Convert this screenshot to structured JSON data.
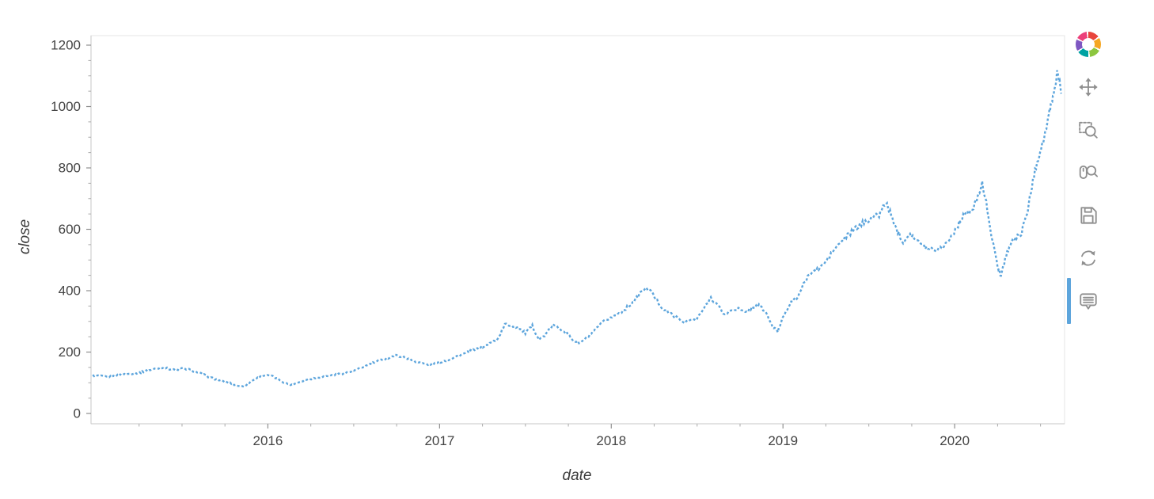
{
  "chart_data": {
    "type": "scatter",
    "title": "",
    "xlabel": "date",
    "ylabel": "close",
    "legend": "none",
    "grid": false,
    "x_ticks": [
      2016,
      2017,
      2018,
      2019,
      2020
    ],
    "y_ticks": [
      0,
      200,
      400,
      600,
      800,
      1000,
      1200
    ],
    "x_range": [
      2014.97,
      2020.64
    ],
    "ylim": [
      0,
      1200
    ],
    "line_color": "#5da5dc",
    "axis_color": "#c7c7c7",
    "outline_color": "#e5e5e5",
    "tick_label_color": "#444444",
    "series": [
      {
        "name": "close",
        "points": [
          [
            2014.98,
            124
          ],
          [
            2015.02,
            122
          ],
          [
            2015.06,
            119
          ],
          [
            2015.1,
            121
          ],
          [
            2015.14,
            126
          ],
          [
            2015.18,
            128
          ],
          [
            2015.22,
            131
          ],
          [
            2015.26,
            134
          ],
          [
            2015.3,
            140
          ],
          [
            2015.34,
            145
          ],
          [
            2015.38,
            149
          ],
          [
            2015.42,
            146
          ],
          [
            2015.46,
            141
          ],
          [
            2015.5,
            147
          ],
          [
            2015.54,
            143
          ],
          [
            2015.58,
            136
          ],
          [
            2015.62,
            128
          ],
          [
            2015.66,
            118
          ],
          [
            2015.7,
            111
          ],
          [
            2015.74,
            105
          ],
          [
            2015.78,
            99
          ],
          [
            2015.82,
            91
          ],
          [
            2015.86,
            88
          ],
          [
            2015.9,
            104
          ],
          [
            2015.94,
            116
          ],
          [
            2015.98,
            124
          ],
          [
            2016.02,
            122
          ],
          [
            2016.06,
            112
          ],
          [
            2016.1,
            99
          ],
          [
            2016.14,
            93
          ],
          [
            2016.18,
            102
          ],
          [
            2016.22,
            110
          ],
          [
            2016.26,
            114
          ],
          [
            2016.3,
            118
          ],
          [
            2016.34,
            121
          ],
          [
            2016.38,
            125
          ],
          [
            2016.42,
            129
          ],
          [
            2016.46,
            133
          ],
          [
            2016.5,
            139
          ],
          [
            2016.54,
            147
          ],
          [
            2016.58,
            157
          ],
          [
            2016.62,
            166
          ],
          [
            2016.66,
            174
          ],
          [
            2016.7,
            181
          ],
          [
            2016.74,
            189
          ],
          [
            2016.78,
            186
          ],
          [
            2016.82,
            178
          ],
          [
            2016.86,
            170
          ],
          [
            2016.9,
            163
          ],
          [
            2016.94,
            159
          ],
          [
            2016.98,
            164
          ],
          [
            2017.02,
            170
          ],
          [
            2017.06,
            177
          ],
          [
            2017.1,
            186
          ],
          [
            2017.14,
            194
          ],
          [
            2017.18,
            203
          ],
          [
            2017.22,
            211
          ],
          [
            2017.26,
            219
          ],
          [
            2017.3,
            230
          ],
          [
            2017.34,
            243
          ],
          [
            2017.38,
            290
          ],
          [
            2017.42,
            287
          ],
          [
            2017.46,
            278
          ],
          [
            2017.5,
            262
          ],
          [
            2017.54,
            285
          ],
          [
            2017.58,
            240
          ],
          [
            2017.62,
            258
          ],
          [
            2017.66,
            288
          ],
          [
            2017.7,
            278
          ],
          [
            2017.74,
            262
          ],
          [
            2017.78,
            237
          ],
          [
            2017.82,
            230
          ],
          [
            2017.86,
            248
          ],
          [
            2017.9,
            268
          ],
          [
            2017.94,
            292
          ],
          [
            2017.98,
            308
          ],
          [
            2018.02,
            318
          ],
          [
            2018.06,
            332
          ],
          [
            2018.1,
            349
          ],
          [
            2018.14,
            370
          ],
          [
            2018.18,
            400
          ],
          [
            2018.22,
            408
          ],
          [
            2018.26,
            372
          ],
          [
            2018.3,
            342
          ],
          [
            2018.34,
            327
          ],
          [
            2018.38,
            312
          ],
          [
            2018.42,
            298
          ],
          [
            2018.46,
            303
          ],
          [
            2018.5,
            310
          ],
          [
            2018.54,
            342
          ],
          [
            2018.58,
            378
          ],
          [
            2018.62,
            352
          ],
          [
            2018.66,
            322
          ],
          [
            2018.7,
            336
          ],
          [
            2018.74,
            342
          ],
          [
            2018.78,
            328
          ],
          [
            2018.82,
            345
          ],
          [
            2018.86,
            352
          ],
          [
            2018.9,
            330
          ],
          [
            2018.94,
            282
          ],
          [
            2018.97,
            267
          ],
          [
            2019.0,
            315
          ],
          [
            2019.04,
            358
          ],
          [
            2019.08,
            376
          ],
          [
            2019.12,
            420
          ],
          [
            2019.16,
            458
          ],
          [
            2019.2,
            468
          ],
          [
            2019.24,
            488
          ],
          [
            2019.28,
            520
          ],
          [
            2019.32,
            548
          ],
          [
            2019.36,
            570
          ],
          [
            2019.4,
            592
          ],
          [
            2019.44,
            610
          ],
          [
            2019.48,
            626
          ],
          [
            2019.52,
            638
          ],
          [
            2019.56,
            648
          ],
          [
            2019.6,
            688
          ],
          [
            2019.63,
            645
          ],
          [
            2019.66,
            602
          ],
          [
            2019.7,
            560
          ],
          [
            2019.74,
            588
          ],
          [
            2019.78,
            562
          ],
          [
            2019.82,
            545
          ],
          [
            2019.86,
            538
          ],
          [
            2019.9,
            534
          ],
          [
            2019.94,
            548
          ],
          [
            2019.98,
            576
          ],
          [
            2020.02,
            614
          ],
          [
            2020.05,
            648
          ],
          [
            2020.08,
            652
          ],
          [
            2020.11,
            668
          ],
          [
            2020.14,
            720
          ],
          [
            2020.16,
            748
          ],
          [
            2020.19,
            668
          ],
          [
            2020.22,
            560
          ],
          [
            2020.25,
            482
          ],
          [
            2020.27,
            448
          ],
          [
            2020.3,
            516
          ],
          [
            2020.33,
            558
          ],
          [
            2020.36,
            572
          ],
          [
            2020.39,
            590
          ],
          [
            2020.42,
            648
          ],
          [
            2020.45,
            742
          ],
          [
            2020.48,
            822
          ],
          [
            2020.51,
            876
          ],
          [
            2020.54,
            942
          ],
          [
            2020.56,
            1005
          ],
          [
            2020.58,
            1048
          ],
          [
            2020.6,
            1122
          ],
          [
            2020.62,
            1042
          ]
        ]
      }
    ]
  },
  "toolbar": {
    "logo": "bokeh",
    "active_color": "#5da5dc",
    "tools": [
      {
        "name": "pan",
        "active": false
      },
      {
        "name": "box_zoom",
        "active": false
      },
      {
        "name": "wheel_zoom",
        "active": false
      },
      {
        "name": "save",
        "active": false
      },
      {
        "name": "reset",
        "active": false
      },
      {
        "name": "hover",
        "active": true
      }
    ]
  }
}
